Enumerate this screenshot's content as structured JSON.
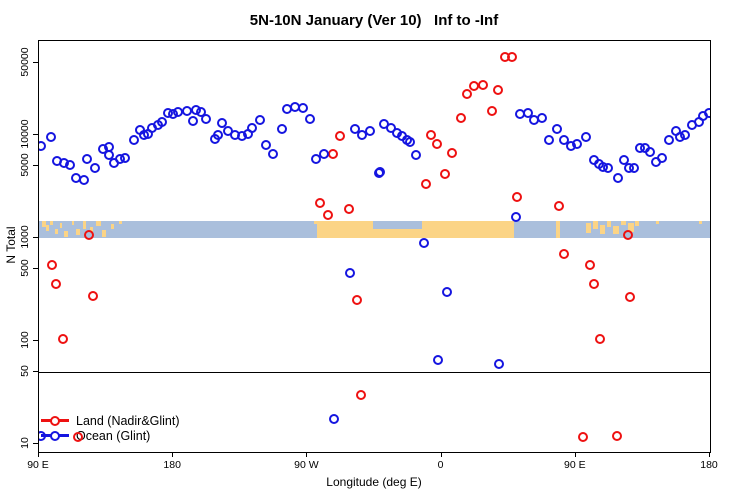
{
  "title": "5N-10N January (Ver 10)   Inf to -Inf",
  "legend": {
    "items": [
      {
        "label": "Land (Nadir&Glint)",
        "color": "#ee1111"
      },
      {
        "label": "Ocean (Glint)",
        "color": "#1515e0"
      }
    ]
  },
  "colors": {
    "land_series": "#ee1111",
    "ocean_series": "#1515e0",
    "band_ocean": "#aabfdc",
    "band_land": "#fbd486",
    "axis": "#000000"
  },
  "chart_data": {
    "type": "scatter",
    "title": "5N-10N January (Ver 10)   Inf to -Inf",
    "xlabel": "Longitude (deg E)",
    "ylabel": "N Total",
    "x_axis": {
      "start": 90,
      "end": 540,
      "note_layout": "longitude axis wraps eastward: 90E -> 180 -> 90W -> 0 -> 90E -> 180",
      "ticks": [
        {
          "value": 90,
          "label": "90 E"
        },
        {
          "value": 180,
          "label": "180"
        },
        {
          "value": 270,
          "label": "90 W"
        },
        {
          "value": 360,
          "label": "0"
        },
        {
          "value": 450,
          "label": "90 E"
        },
        {
          "value": 540,
          "label": "180"
        }
      ]
    },
    "y_axis": {
      "scale": "log",
      "min": 8,
      "max": 80000,
      "ticks": [
        {
          "value": 50000,
          "label": "50000"
        },
        {
          "value": 10000,
          "label": "10000"
        },
        {
          "value": 5000,
          "label": "5000"
        },
        {
          "value": 1000,
          "label": "1000"
        },
        {
          "value": 500,
          "label": "500"
        },
        {
          "value": 100,
          "label": "100"
        },
        {
          "value": 50,
          "label": "50"
        },
        {
          "value": 10,
          "label": "10"
        }
      ]
    },
    "reference_line_value": 50,
    "grid": false,
    "legend_position": "bottom-left",
    "map_band": {
      "description_layout": "geography strip for the 5N-10N latitude band drawn across the plot",
      "value_top": 1450,
      "value_bottom": 1000,
      "ocean_color": "#aabfdc",
      "land_color": "#fbd486",
      "patches": [
        [
          92,
          94.5,
          0,
          0.35
        ],
        [
          94.8,
          96.5,
          0.25,
          0.35
        ],
        [
          97.5,
          99.5,
          0,
          0.25
        ],
        [
          100.5,
          103,
          0.45,
          0.35
        ],
        [
          104,
          105.5,
          0.1,
          0.3
        ],
        [
          106.5,
          109.5,
          0.6,
          0.35
        ],
        [
          112,
          113.5,
          0,
          0.25
        ],
        [
          115,
          117.5,
          0.5,
          0.35
        ],
        [
          119.5,
          121.5,
          0,
          0.5
        ],
        [
          124,
          126,
          0.35,
          0.3
        ],
        [
          128.5,
          131.5,
          0,
          0.3
        ],
        [
          132,
          135,
          0.55,
          0.4
        ],
        [
          138,
          140,
          0.15,
          0.3
        ],
        [
          143.5,
          145.5,
          0,
          0.2
        ],
        [
          274.5,
          277,
          0,
          0.2
        ],
        [
          276.5,
          314,
          0,
          1
        ],
        [
          314,
          347,
          0.5,
          0.5
        ],
        [
          347,
          408.5,
          0,
          1
        ],
        [
          437,
          439.5,
          0,
          1
        ],
        [
          457,
          460,
          0.1,
          0.6
        ],
        [
          461.5,
          465,
          0,
          0.45
        ],
        [
          466.5,
          469.5,
          0.25,
          0.55
        ],
        [
          471,
          473.5,
          0,
          0.35
        ],
        [
          475,
          479,
          0.3,
          0.45
        ],
        [
          480.5,
          483.5,
          0,
          0.25
        ],
        [
          485,
          489,
          0.1,
          0.55
        ],
        [
          490,
          492.5,
          0,
          0.3
        ],
        [
          504,
          506,
          0,
          0.2
        ],
        [
          532.5,
          534.5,
          0,
          0.15
        ]
      ]
    },
    "series": [
      {
        "name": "Land (Nadir&Glint)",
        "color": "#ee1111",
        "points": [
          [
            98.7,
            540
          ],
          [
            101.5,
            360
          ],
          [
            106,
            104
          ],
          [
            116,
            11.8
          ],
          [
            123.5,
            1060
          ],
          [
            126,
            272
          ],
          [
            278.5,
            2190
          ],
          [
            283.5,
            1650
          ],
          [
            287.5,
            6550
          ],
          [
            292,
            9710
          ],
          [
            298,
            1890
          ],
          [
            303,
            249
          ],
          [
            306,
            29.6
          ],
          [
            349.5,
            3300
          ],
          [
            353,
            9930
          ],
          [
            357,
            8180
          ],
          [
            362.5,
            4190
          ],
          [
            367,
            6700
          ],
          [
            373,
            14400
          ],
          [
            377,
            24600
          ],
          [
            382,
            29500
          ],
          [
            387.5,
            30300
          ],
          [
            393.5,
            17100
          ],
          [
            398,
            27000
          ],
          [
            402.5,
            57000
          ],
          [
            407.5,
            57000
          ],
          [
            410.5,
            2460
          ],
          [
            439,
            2030
          ],
          [
            442,
            692
          ],
          [
            454.5,
            11.8
          ],
          [
            459.5,
            541
          ],
          [
            462,
            354
          ],
          [
            466.5,
            104
          ],
          [
            477.5,
            12
          ],
          [
            485,
            1060
          ],
          [
            486.5,
            268
          ]
        ]
      },
      {
        "name": "Ocean (Glint)",
        "color": "#1515e0",
        "points": [
          [
            91.5,
            7770
          ],
          [
            98.3,
            9560
          ],
          [
            102,
            5560
          ],
          [
            107,
            5280
          ],
          [
            111,
            5050
          ],
          [
            114.5,
            3780
          ],
          [
            120,
            3640
          ],
          [
            122.5,
            5780
          ],
          [
            127.5,
            4720
          ],
          [
            133,
            7320
          ],
          [
            136.8,
            6360
          ],
          [
            137.2,
            7600
          ],
          [
            140.5,
            5280
          ],
          [
            144,
            5850
          ],
          [
            148,
            5980
          ],
          [
            154,
            8830
          ],
          [
            157.5,
            11000
          ],
          [
            160.5,
            9870
          ],
          [
            163,
            10230
          ],
          [
            166,
            11700
          ],
          [
            169.5,
            12340
          ],
          [
            172.5,
            13270
          ],
          [
            176.5,
            16350
          ],
          [
            180,
            15780
          ],
          [
            183.5,
            16600
          ],
          [
            189.5,
            16980
          ],
          [
            193,
            13580
          ],
          [
            195,
            17380
          ],
          [
            198.5,
            16600
          ],
          [
            202,
            14100
          ],
          [
            208,
            9150
          ],
          [
            210,
            9870
          ],
          [
            212.5,
            12900
          ],
          [
            216.5,
            10860
          ],
          [
            221.5,
            9870
          ],
          [
            226,
            9710
          ],
          [
            230,
            10230
          ],
          [
            233,
            11700
          ],
          [
            238,
            13800
          ],
          [
            242,
            7890
          ],
          [
            247,
            6460
          ],
          [
            253,
            11430
          ],
          [
            256.5,
            17630
          ],
          [
            261.5,
            18450
          ],
          [
            267,
            18160
          ],
          [
            272,
            14290
          ],
          [
            276,
            5850
          ],
          [
            281,
            6500
          ],
          [
            288,
            17.4
          ],
          [
            298.7,
            453
          ],
          [
            302,
            11300
          ],
          [
            306.5,
            9930
          ],
          [
            312,
            10860
          ],
          [
            318,
            4290
          ],
          [
            319,
            4380
          ],
          [
            321.5,
            12620
          ],
          [
            326,
            11700
          ],
          [
            330,
            10470
          ],
          [
            333.5,
            9770
          ],
          [
            336.5,
            8830
          ],
          [
            339,
            8490
          ],
          [
            342.5,
            6310
          ],
          [
            348,
            885
          ],
          [
            357.5,
            65
          ],
          [
            363.5,
            298
          ],
          [
            398.5,
            60
          ],
          [
            410,
            1590
          ],
          [
            412.5,
            15890
          ],
          [
            418,
            16260
          ],
          [
            422,
            13900
          ],
          [
            427,
            14520
          ],
          [
            432,
            8830
          ],
          [
            437.5,
            11300
          ],
          [
            442,
            8830
          ],
          [
            446.5,
            7770
          ],
          [
            450.5,
            8180
          ],
          [
            457,
            9510
          ],
          [
            462.5,
            5650
          ],
          [
            465.5,
            5160
          ],
          [
            468.5,
            4860
          ],
          [
            471.5,
            4790
          ],
          [
            478,
            3780
          ],
          [
            482.5,
            5650
          ],
          [
            485.5,
            4720
          ],
          [
            489,
            4790
          ],
          [
            493,
            7380
          ],
          [
            496.5,
            7380
          ],
          [
            500,
            6840
          ],
          [
            503.5,
            5470
          ],
          [
            508,
            5900
          ],
          [
            512.5,
            8830
          ],
          [
            517,
            10860
          ],
          [
            520,
            9510
          ],
          [
            523.5,
            9930
          ],
          [
            528,
            12420
          ],
          [
            532.5,
            13360
          ],
          [
            535.5,
            15170
          ],
          [
            539,
            16370
          ],
          [
            91.3,
            12
          ]
        ]
      }
    ]
  }
}
